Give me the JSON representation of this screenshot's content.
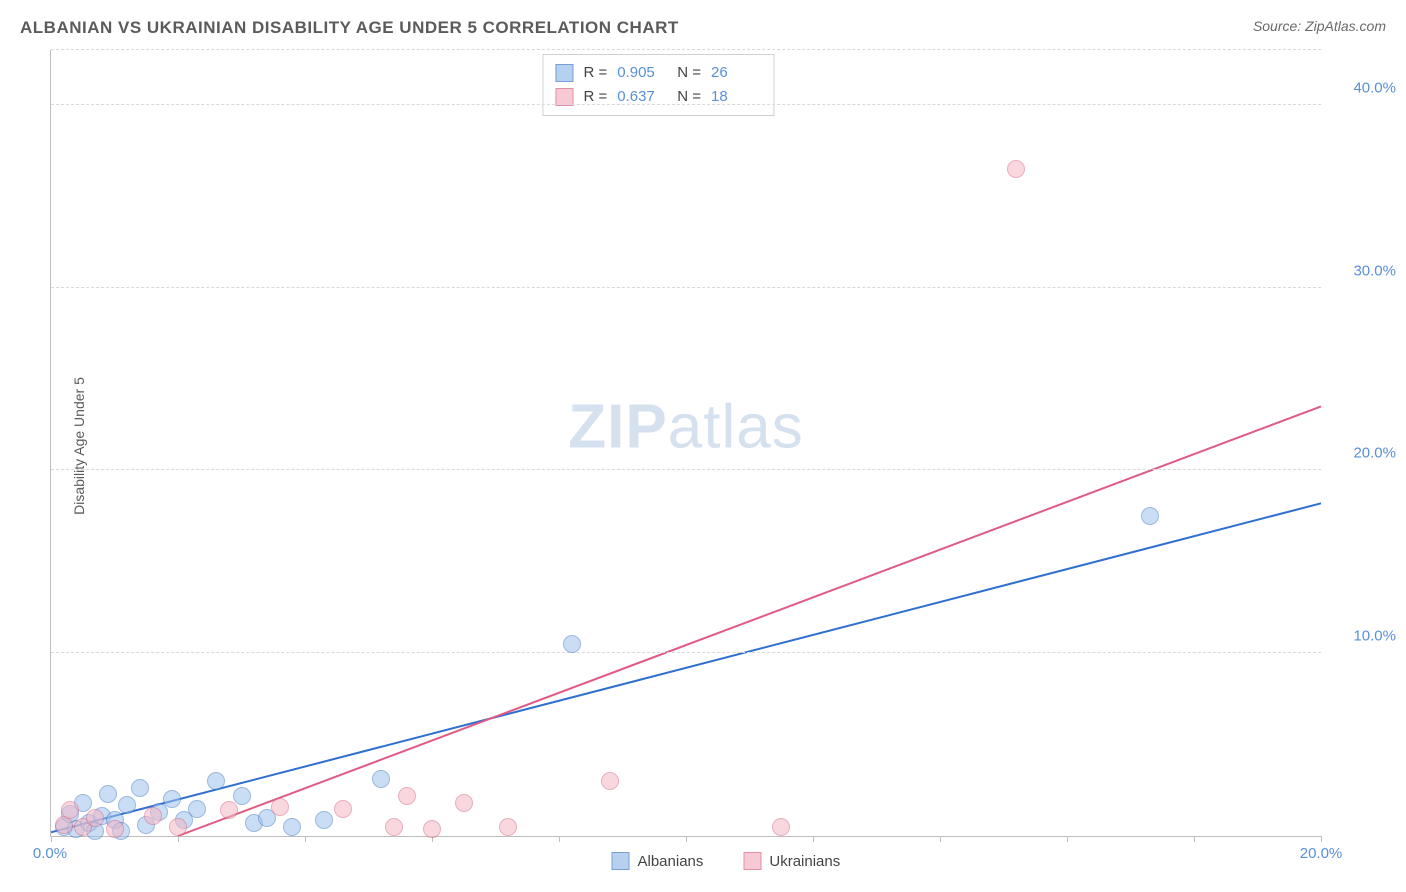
{
  "title": "ALBANIAN VS UKRAINIAN DISABILITY AGE UNDER 5 CORRELATION CHART",
  "source_prefix": "Source: ",
  "source": "ZipAtlas.com",
  "yaxis_label": "Disability Age Under 5",
  "watermark_zip": "ZIP",
  "watermark_atlas": "atlas",
  "chart": {
    "type": "scatter",
    "xlim": [
      0,
      20
    ],
    "ylim": [
      0,
      43
    ],
    "xticks": [
      0,
      2,
      4,
      6,
      8,
      10,
      12,
      14,
      16,
      18,
      20
    ],
    "xtick_labels": {
      "0": "0.0%",
      "20": "20.0%"
    },
    "gridlines_y": [
      10,
      20,
      30,
      40,
      43
    ],
    "ytick_labels": {
      "10": "10.0%",
      "20": "20.0%",
      "30": "30.0%",
      "40": "40.0%"
    },
    "background_color": "#ffffff",
    "grid_color": "#d9d9d9",
    "axis_color": "#bdbdbd",
    "tick_label_color": "#5a8fd8",
    "series": [
      {
        "name": "Albanians",
        "fill_color": "#9ec2ec",
        "stroke_color": "#4a7fc6",
        "fill_opacity": 0.55,
        "marker_radius": 9,
        "line_color": "#2f6fd0",
        "line_width": 2,
        "trend": {
          "x1": 0,
          "y1": 0.2,
          "x2": 20,
          "y2": 18.2
        },
        "R_label": "R =",
        "R": "0.905",
        "N_label": "N =",
        "N": "26",
        "points": [
          {
            "x": 0.2,
            "y": 0.5
          },
          {
            "x": 0.3,
            "y": 1.2
          },
          {
            "x": 0.4,
            "y": 0.4
          },
          {
            "x": 0.5,
            "y": 1.8
          },
          {
            "x": 0.6,
            "y": 0.7
          },
          {
            "x": 0.7,
            "y": 0.3
          },
          {
            "x": 0.8,
            "y": 1.1
          },
          {
            "x": 0.9,
            "y": 2.3
          },
          {
            "x": 1.0,
            "y": 0.9
          },
          {
            "x": 1.2,
            "y": 1.7
          },
          {
            "x": 1.4,
            "y": 2.6
          },
          {
            "x": 1.5,
            "y": 0.6
          },
          {
            "x": 1.7,
            "y": 1.3
          },
          {
            "x": 1.9,
            "y": 2.0
          },
          {
            "x": 2.1,
            "y": 0.9
          },
          {
            "x": 2.3,
            "y": 1.5
          },
          {
            "x": 2.6,
            "y": 3.0
          },
          {
            "x": 3.0,
            "y": 2.2
          },
          {
            "x": 3.2,
            "y": 0.7
          },
          {
            "x": 3.4,
            "y": 1.0
          },
          {
            "x": 3.8,
            "y": 0.5
          },
          {
            "x": 4.3,
            "y": 0.9
          },
          {
            "x": 5.2,
            "y": 3.1
          },
          {
            "x": 8.2,
            "y": 10.5
          },
          {
            "x": 17.3,
            "y": 17.5
          },
          {
            "x": 1.1,
            "y": 0.3
          }
        ]
      },
      {
        "name": "Ukrainians",
        "fill_color": "#f4b8c6",
        "stroke_color": "#d76d8a",
        "fill_opacity": 0.55,
        "marker_radius": 9,
        "line_color": "#e05a83",
        "line_width": 2,
        "trend": {
          "x1": 2.0,
          "y1": 0.0,
          "x2": 20,
          "y2": 23.5
        },
        "R_label": "R =",
        "R": "0.637",
        "N_label": "N =",
        "N": "18",
        "points": [
          {
            "x": 0.2,
            "y": 0.6
          },
          {
            "x": 0.3,
            "y": 1.4
          },
          {
            "x": 0.5,
            "y": 0.5
          },
          {
            "x": 0.7,
            "y": 1.0
          },
          {
            "x": 1.0,
            "y": 0.4
          },
          {
            "x": 1.6,
            "y": 1.1
          },
          {
            "x": 2.0,
            "y": 0.5
          },
          {
            "x": 2.8,
            "y": 1.4
          },
          {
            "x": 3.6,
            "y": 1.6
          },
          {
            "x": 4.6,
            "y": 1.5
          },
          {
            "x": 5.4,
            "y": 0.5
          },
          {
            "x": 5.6,
            "y": 2.2
          },
          {
            "x": 6.0,
            "y": 0.4
          },
          {
            "x": 6.5,
            "y": 1.8
          },
          {
            "x": 7.2,
            "y": 0.5
          },
          {
            "x": 8.8,
            "y": 3.0
          },
          {
            "x": 11.5,
            "y": 0.5
          },
          {
            "x": 15.2,
            "y": 36.5
          }
        ]
      }
    ]
  }
}
